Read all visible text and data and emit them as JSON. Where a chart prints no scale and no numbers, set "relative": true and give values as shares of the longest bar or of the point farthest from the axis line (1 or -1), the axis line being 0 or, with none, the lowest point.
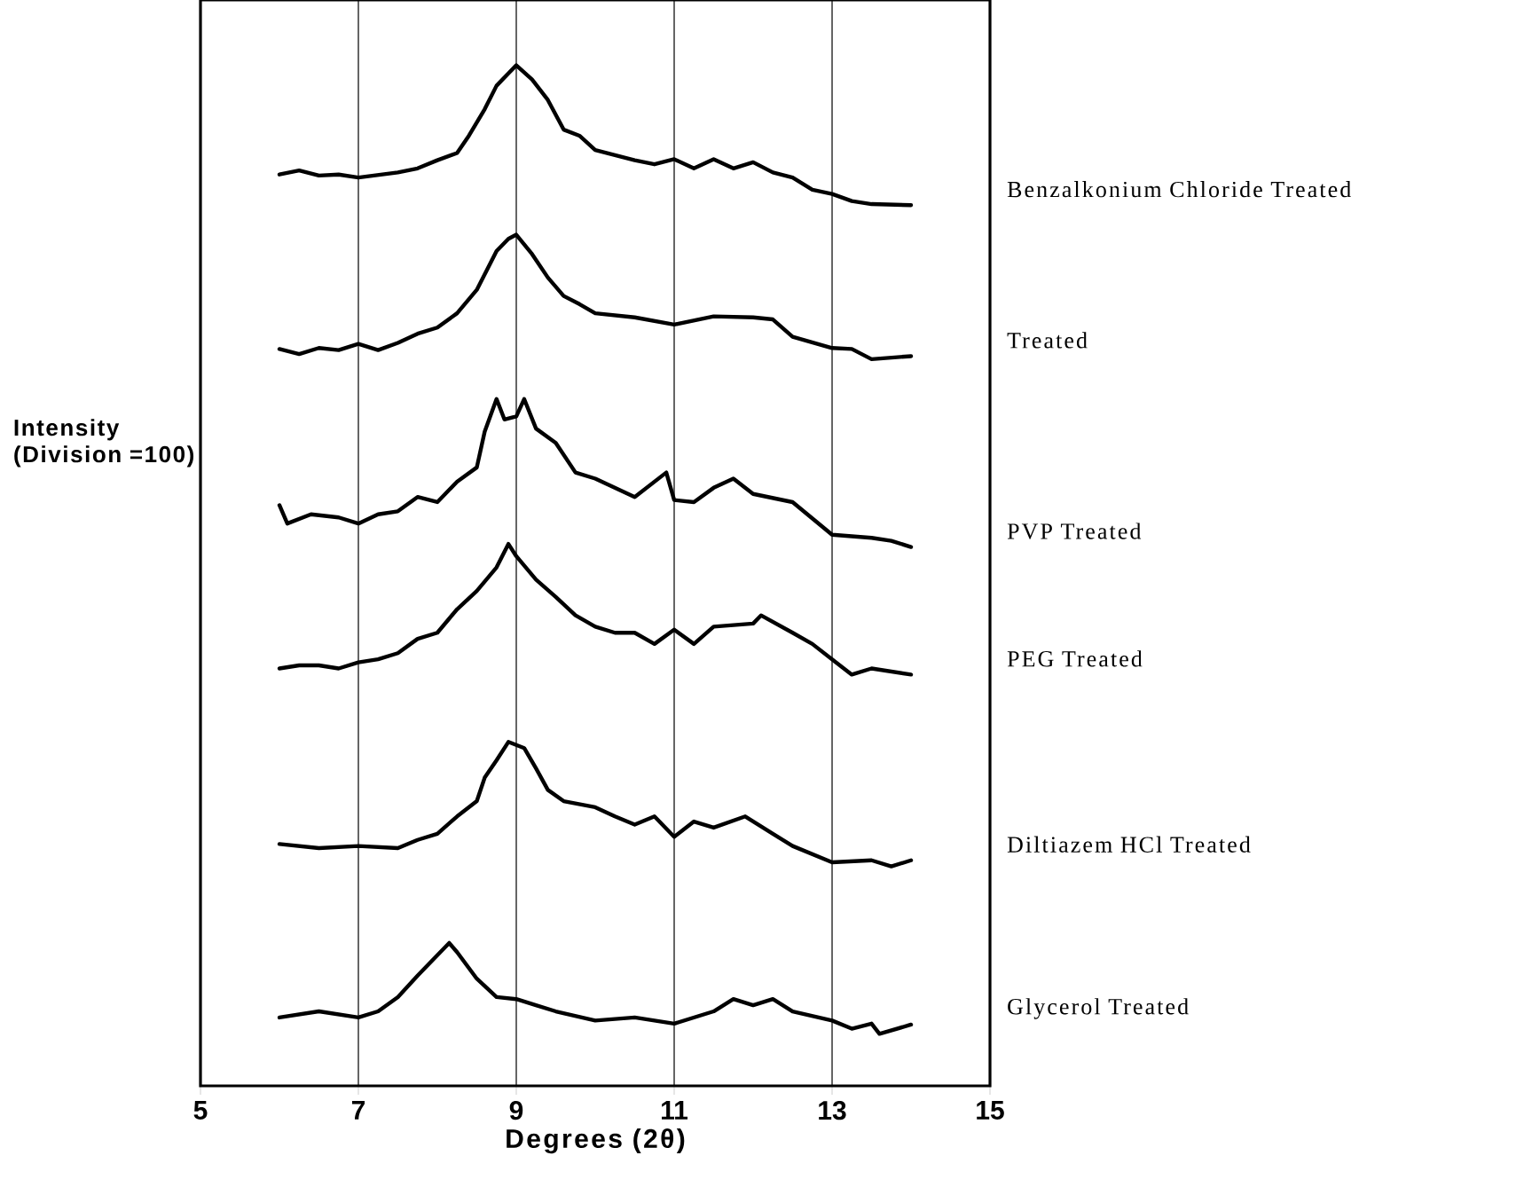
{
  "chart_data": {
    "type": "line",
    "xlabel": "Degrees (2θ)",
    "ylabel": "Intensity (Division =100)",
    "relative": true,
    "xlim": [
      5,
      15
    ],
    "xticks": [
      5,
      7,
      9,
      11,
      13,
      15
    ],
    "grid": "x",
    "marker": "none",
    "line_style": "solid",
    "series": [
      {
        "name": "Benzalkonium Chloride Treated",
        "color": "#000000",
        "x": [
          6,
          6.25,
          6.5,
          6.75,
          7,
          7.5,
          7.75,
          8,
          8.25,
          8.4,
          8.6,
          8.75,
          8.9,
          9,
          9.2,
          9.4,
          9.6,
          9.8,
          10,
          10.5,
          10.75,
          11,
          11.25,
          11.5,
          11.75,
          12,
          12.25,
          12.5,
          12.75,
          13,
          13.25,
          13.5,
          14
        ],
        "values": [
          0.893,
          0.897,
          0.892,
          0.893,
          0.89,
          0.895,
          0.899,
          0.907,
          0.914,
          0.931,
          0.957,
          0.98,
          0.992,
          1.0,
          0.986,
          0.966,
          0.937,
          0.931,
          0.917,
          0.907,
          0.903,
          0.908,
          0.899,
          0.908,
          0.899,
          0.905,
          0.895,
          0.89,
          0.878,
          0.874,
          0.867,
          0.864,
          0.863
        ]
      },
      {
        "name": "Treated",
        "color": "#000000",
        "x": [
          6,
          6.25,
          6.5,
          6.75,
          7,
          7.25,
          7.5,
          7.75,
          8,
          8.25,
          8.5,
          8.75,
          8.9,
          9,
          9.2,
          9.4,
          9.6,
          9.8,
          10,
          10.5,
          11,
          11.5,
          12,
          12.25,
          12.5,
          13,
          13.25,
          13.5,
          14
        ],
        "values": [
          0.722,
          0.717,
          0.723,
          0.721,
          0.727,
          0.721,
          0.728,
          0.737,
          0.743,
          0.757,
          0.78,
          0.818,
          0.83,
          0.834,
          0.815,
          0.792,
          0.774,
          0.766,
          0.757,
          0.753,
          0.746,
          0.754,
          0.753,
          0.751,
          0.734,
          0.723,
          0.722,
          0.712,
          0.715
        ]
      },
      {
        "name": "PVP Treated",
        "color": "#000000",
        "x": [
          6,
          6.1,
          6.4,
          6.75,
          7,
          7.25,
          7.5,
          7.75,
          8,
          8.25,
          8.5,
          8.6,
          8.75,
          8.85,
          9,
          9.1,
          9.25,
          9.5,
          9.75,
          10,
          10.5,
          10.9,
          11,
          11.25,
          11.5,
          11.75,
          12,
          12.5,
          13,
          13.5,
          13.75,
          14
        ],
        "values": [
          0.569,
          0.551,
          0.56,
          0.557,
          0.551,
          0.56,
          0.563,
          0.577,
          0.572,
          0.592,
          0.606,
          0.641,
          0.673,
          0.653,
          0.656,
          0.673,
          0.644,
          0.63,
          0.601,
          0.595,
          0.577,
          0.601,
          0.574,
          0.572,
          0.586,
          0.595,
          0.58,
          0.572,
          0.54,
          0.537,
          0.534,
          0.528
        ]
      },
      {
        "name": "PEG Treated",
        "color": "#000000",
        "x": [
          6,
          6.25,
          6.5,
          6.75,
          7,
          7.25,
          7.5,
          7.75,
          8,
          8.25,
          8.5,
          8.75,
          8.9,
          9,
          9.25,
          9.5,
          9.75,
          10,
          10.25,
          10.5,
          10.75,
          11,
          11.25,
          11.5,
          12,
          12.1,
          12.5,
          12.75,
          13,
          13.25,
          13.5,
          14
        ],
        "values": [
          0.409,
          0.412,
          0.412,
          0.409,
          0.415,
          0.418,
          0.424,
          0.438,
          0.444,
          0.467,
          0.485,
          0.508,
          0.531,
          0.519,
          0.496,
          0.479,
          0.461,
          0.45,
          0.444,
          0.444,
          0.433,
          0.447,
          0.433,
          0.45,
          0.453,
          0.461,
          0.444,
          0.433,
          0.418,
          0.403,
          0.409,
          0.403
        ]
      },
      {
        "name": "Diltiazem HCl Treated",
        "color": "#000000",
        "x": [
          6,
          6.5,
          7,
          7.5,
          7.75,
          8,
          8.25,
          8.5,
          8.6,
          8.75,
          8.9,
          9,
          9.1,
          9.25,
          9.4,
          9.6,
          10,
          10.25,
          10.5,
          10.75,
          11,
          11.25,
          11.5,
          11.9,
          12.25,
          12.5,
          13,
          13.5,
          13.75,
          14
        ],
        "values": [
          0.237,
          0.233,
          0.235,
          0.233,
          0.241,
          0.247,
          0.264,
          0.279,
          0.302,
          0.319,
          0.337,
          0.334,
          0.331,
          0.311,
          0.29,
          0.279,
          0.273,
          0.264,
          0.256,
          0.264,
          0.244,
          0.259,
          0.253,
          0.264,
          0.247,
          0.235,
          0.219,
          0.221,
          0.215,
          0.221
        ]
      },
      {
        "name": "Glycerol Treated",
        "color": "#000000",
        "x": [
          6,
          6.5,
          7,
          7.25,
          7.5,
          7.75,
          8,
          8.15,
          8.25,
          8.5,
          8.75,
          9,
          9.25,
          9.5,
          10,
          10.5,
          11,
          11.5,
          11.75,
          12,
          12.25,
          12.5,
          13,
          13.25,
          13.5,
          13.6,
          14
        ],
        "values": [
          0.067,
          0.073,
          0.067,
          0.073,
          0.087,
          0.108,
          0.128,
          0.14,
          0.131,
          0.105,
          0.087,
          0.085,
          0.079,
          0.073,
          0.064,
          0.067,
          0.061,
          0.073,
          0.085,
          0.079,
          0.085,
          0.073,
          0.064,
          0.056,
          0.061,
          0.051,
          0.06
        ]
      }
    ]
  }
}
